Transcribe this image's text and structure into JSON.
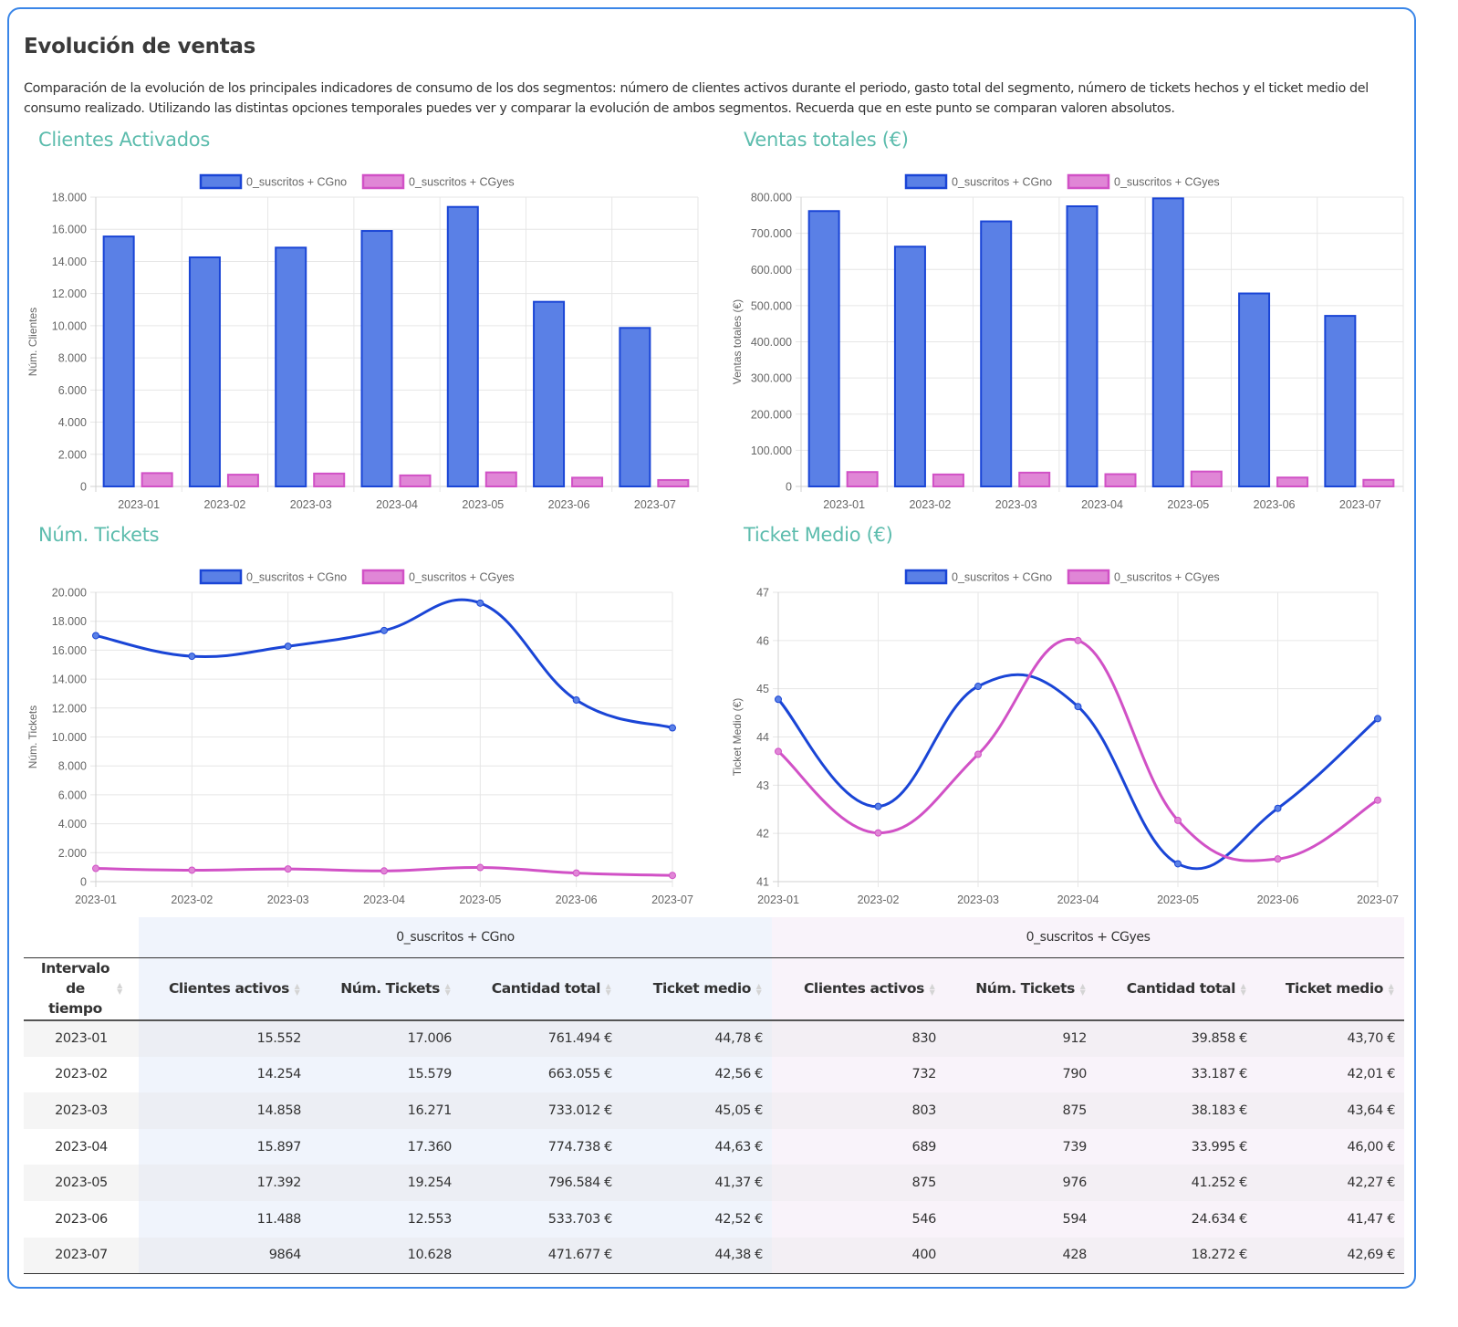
{
  "page": {
    "title": "Evolución de ventas",
    "description": "Comparación de la evolución de los principales indicadores de consumo de los dos segmentos: número de clientes activos durante el periodo, gasto total del segmento, número de tickets hechos y el ticket medio del consumo realizado. Utilizando las distintas opciones temporales puedes ver y comparar la evolución de ambos segmentos. Recuerda que en este punto se comparan valoren absolutos."
  },
  "colors": {
    "series_cgno_fill": "#5a80e6",
    "series_cgno_line": "#1a45d6",
    "series_cgyes_fill": "#e086d6",
    "series_cgyes_line": "#d151c6",
    "chart_title": "#5cbcad",
    "card_border": "#3a86e8"
  },
  "legend": [
    "0_suscritos + CGno",
    "0_suscritos + CGyes"
  ],
  "chart_data": [
    {
      "id": "clientes",
      "type": "bar",
      "title": "Clientes Activados",
      "xlabel": "",
      "ylabel": "Núm. Clientes",
      "categories": [
        "2023-01",
        "2023-02",
        "2023-03",
        "2023-04",
        "2023-05",
        "2023-06",
        "2023-07"
      ],
      "ylim": [
        0,
        18000
      ],
      "yticks": [
        0,
        2000,
        4000,
        6000,
        8000,
        10000,
        12000,
        14000,
        16000,
        18000
      ],
      "ytick_labels": [
        "0",
        "2.000",
        "4.000",
        "6.000",
        "8.000",
        "10.000",
        "12.000",
        "14.000",
        "16.000",
        "18.000"
      ],
      "grid": true,
      "legend_position": "top",
      "series": [
        {
          "name": "0_suscritos + CGno",
          "values": [
            15552,
            14254,
            14858,
            15897,
            17392,
            11488,
            9864
          ]
        },
        {
          "name": "0_suscritos + CGyes",
          "values": [
            830,
            732,
            803,
            689,
            875,
            546,
            400
          ]
        }
      ]
    },
    {
      "id": "ventas",
      "type": "bar",
      "title": "Ventas totales (€)",
      "xlabel": "",
      "ylabel": "Ventas totales (€)",
      "categories": [
        "2023-01",
        "2023-02",
        "2023-03",
        "2023-04",
        "2023-05",
        "2023-06",
        "2023-07"
      ],
      "ylim": [
        0,
        800000
      ],
      "yticks": [
        0,
        100000,
        200000,
        300000,
        400000,
        500000,
        600000,
        700000,
        800000
      ],
      "ytick_labels": [
        "0",
        "100.000",
        "200.000",
        "300.000",
        "400.000",
        "500.000",
        "600.000",
        "700.000",
        "800.000"
      ],
      "grid": true,
      "legend_position": "top",
      "series": [
        {
          "name": "0_suscritos + CGno",
          "values": [
            761494,
            663055,
            733012,
            774738,
            796584,
            533703,
            471677
          ]
        },
        {
          "name": "0_suscritos + CGyes",
          "values": [
            39858,
            33187,
            38183,
            33995,
            41252,
            24634,
            18272
          ]
        }
      ]
    },
    {
      "id": "tickets",
      "type": "line",
      "title": "Núm. Tickets",
      "xlabel": "",
      "ylabel": "Núm. Tickets",
      "categories": [
        "2023-01",
        "2023-02",
        "2023-03",
        "2023-04",
        "2023-05",
        "2023-06",
        "2023-07"
      ],
      "ylim": [
        0,
        20000
      ],
      "yticks": [
        0,
        2000,
        4000,
        6000,
        8000,
        10000,
        12000,
        14000,
        16000,
        18000,
        20000
      ],
      "ytick_labels": [
        "0",
        "2.000",
        "4.000",
        "6.000",
        "8.000",
        "10.000",
        "12.000",
        "14.000",
        "16.000",
        "18.000",
        "20.000"
      ],
      "grid": true,
      "legend_position": "top",
      "series": [
        {
          "name": "0_suscritos + CGno",
          "values": [
            17006,
            15579,
            16271,
            17360,
            19254,
            12553,
            10628
          ]
        },
        {
          "name": "0_suscritos + CGyes",
          "values": [
            912,
            790,
            875,
            739,
            976,
            594,
            428
          ]
        }
      ]
    },
    {
      "id": "ticketmedio",
      "type": "line",
      "title": "Ticket Medio (€)",
      "xlabel": "",
      "ylabel": "Ticket Medio (€)",
      "categories": [
        "2023-01",
        "2023-02",
        "2023-03",
        "2023-04",
        "2023-05",
        "2023-06",
        "2023-07"
      ],
      "ylim": [
        41,
        47
      ],
      "yticks": [
        41,
        42,
        43,
        44,
        45,
        46,
        47
      ],
      "ytick_labels": [
        "41",
        "42",
        "43",
        "44",
        "45",
        "46",
        "47"
      ],
      "grid": true,
      "legend_position": "top",
      "series": [
        {
          "name": "0_suscritos + CGno",
          "values": [
            44.78,
            42.56,
            45.05,
            44.63,
            41.37,
            42.52,
            44.38
          ]
        },
        {
          "name": "0_suscritos + CGyes",
          "values": [
            43.7,
            42.01,
            43.64,
            46.0,
            42.27,
            41.47,
            42.69
          ]
        }
      ]
    }
  ],
  "table": {
    "group_headers": [
      "",
      "0_suscritos + CGno",
      "0_suscritos + CGyes"
    ],
    "columns": [
      "Intervalo de tiempo",
      "Clientes activos",
      "Núm. Tickets",
      "Cantidad total",
      "Ticket medio",
      "Clientes activos",
      "Núm. Tickets",
      "Cantidad total",
      "Ticket medio"
    ],
    "rows": [
      [
        "2023-01",
        "15.552",
        "17.006",
        "761.494 €",
        "44,78 €",
        "830",
        "912",
        "39.858 €",
        "43,70 €"
      ],
      [
        "2023-02",
        "14.254",
        "15.579",
        "663.055 €",
        "42,56 €",
        "732",
        "790",
        "33.187 €",
        "42,01 €"
      ],
      [
        "2023-03",
        "14.858",
        "16.271",
        "733.012 €",
        "45,05 €",
        "803",
        "875",
        "38.183 €",
        "43,64 €"
      ],
      [
        "2023-04",
        "15.897",
        "17.360",
        "774.738 €",
        "44,63 €",
        "689",
        "739",
        "33.995 €",
        "46,00 €"
      ],
      [
        "2023-05",
        "17.392",
        "19.254",
        "796.584 €",
        "41,37 €",
        "875",
        "976",
        "41.252 €",
        "42,27 €"
      ],
      [
        "2023-06",
        "11.488",
        "12.553",
        "533.703 €",
        "42,52 €",
        "546",
        "594",
        "24.634 €",
        "41,47 €"
      ],
      [
        "2023-07",
        "9864",
        "10.628",
        "471.677 €",
        "44,38 €",
        "400",
        "428",
        "18.272 €",
        "42,69 €"
      ]
    ]
  }
}
